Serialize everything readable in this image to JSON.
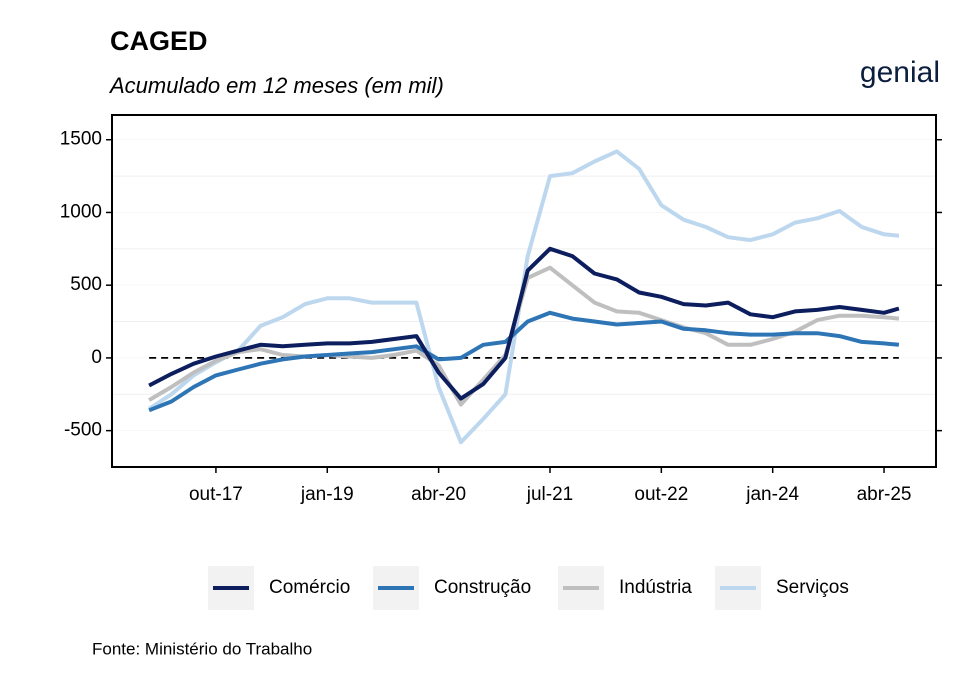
{
  "chart_data": {
    "type": "line",
    "title": "CAGED",
    "subtitle": "Acumulado em 12 meses (em mil)",
    "logo": "genial",
    "source": "Fonte: Ministério do Trabalho",
    "x": [
      "2017-01",
      "2017-04",
      "2017-07",
      "2017-10",
      "2018-01",
      "2018-04",
      "2018-07",
      "2018-10",
      "2019-01",
      "2019-04",
      "2019-07",
      "2019-10",
      "2020-01",
      "2020-04",
      "2020-07",
      "2020-10",
      "2021-01",
      "2021-04",
      "2021-07",
      "2021-10",
      "2022-01",
      "2022-04",
      "2022-07",
      "2022-10",
      "2023-01",
      "2023-04",
      "2023-07",
      "2023-10",
      "2024-01",
      "2024-04",
      "2024-07",
      "2024-10",
      "2025-01",
      "2025-04",
      "2025-06"
    ],
    "series": [
      {
        "name": "Comércio",
        "color": "#0c1e5e",
        "values": [
          -190,
          -110,
          -40,
          10,
          50,
          90,
          80,
          90,
          100,
          100,
          110,
          130,
          150,
          -100,
          -280,
          -180,
          0,
          600,
          750,
          700,
          580,
          540,
          450,
          420,
          370,
          360,
          380,
          300,
          280,
          320,
          330,
          350,
          330,
          310,
          340
        ]
      },
      {
        "name": "Construção",
        "color": "#2e75b6",
        "values": [
          -360,
          -300,
          -200,
          -120,
          -80,
          -40,
          -10,
          10,
          20,
          30,
          40,
          60,
          80,
          -10,
          0,
          90,
          110,
          250,
          310,
          270,
          250,
          230,
          240,
          250,
          200,
          190,
          170,
          160,
          160,
          170,
          170,
          150,
          110,
          100,
          90
        ]
      },
      {
        "name": "Indústria",
        "color": "#bfbfbf",
        "values": [
          -290,
          -200,
          -100,
          -20,
          40,
          60,
          20,
          10,
          20,
          10,
          0,
          20,
          50,
          -50,
          -320,
          -150,
          20,
          550,
          620,
          500,
          380,
          320,
          310,
          260,
          210,
          170,
          90,
          90,
          130,
          180,
          260,
          290,
          290,
          280,
          270
        ]
      },
      {
        "name": "Serviços",
        "color": "#bdd7ee",
        "values": [
          -350,
          -250,
          -120,
          -30,
          50,
          220,
          280,
          370,
          410,
          410,
          380,
          380,
          380,
          -200,
          -580,
          -420,
          -250,
          700,
          1250,
          1270,
          1350,
          1420,
          1300,
          1050,
          950,
          900,
          830,
          810,
          850,
          930,
          960,
          1010,
          900,
          850,
          840
        ]
      }
    ],
    "xlim": [
      "2016-08",
      "2025-11"
    ],
    "xticks": [
      {
        "value": "2017-10",
        "label": "out-17"
      },
      {
        "value": "2019-01",
        "label": "jan-19"
      },
      {
        "value": "2020-04",
        "label": "abr-20"
      },
      {
        "value": "2021-07",
        "label": "jul-21"
      },
      {
        "value": "2022-10",
        "label": "out-22"
      },
      {
        "value": "2024-01",
        "label": "jan-24"
      },
      {
        "value": "2025-04",
        "label": "abr-25"
      }
    ],
    "ylim": [
      -750,
      1670
    ],
    "yticks": [
      -500,
      0,
      500,
      1000,
      1500
    ],
    "minor_grid": [
      -250,
      250,
      750,
      1250
    ],
    "hline": 0,
    "legend": "bottom"
  }
}
